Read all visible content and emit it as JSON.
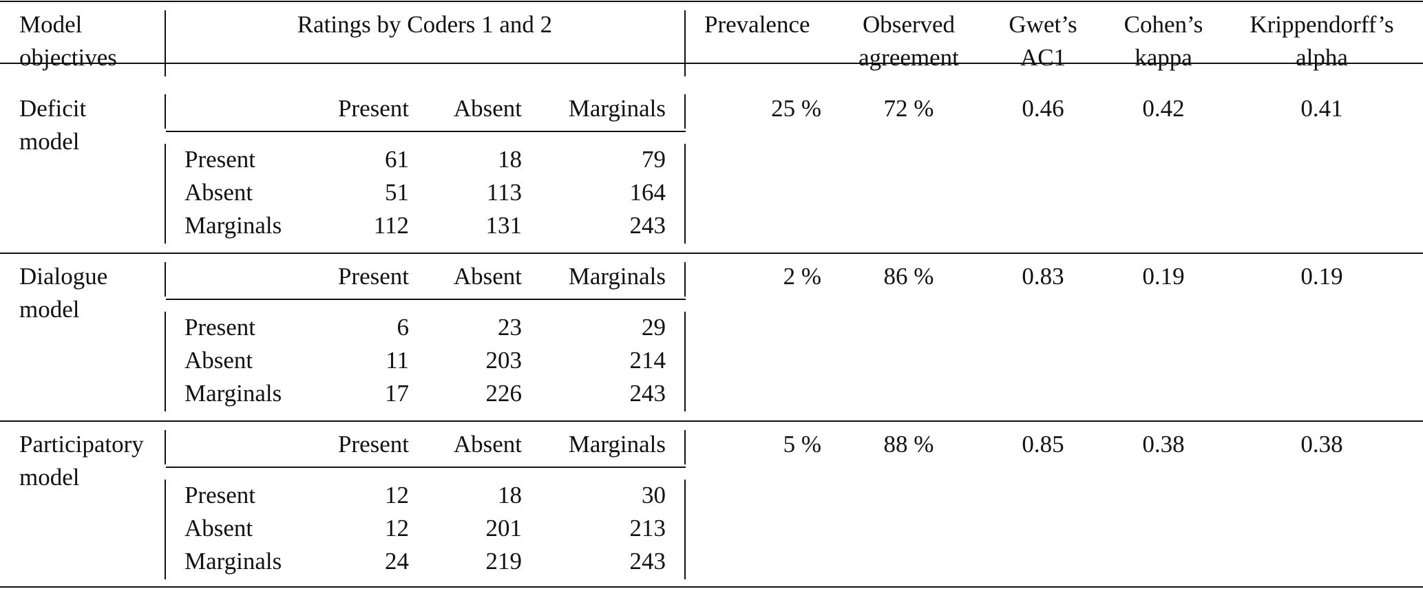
{
  "headers": {
    "model_objectives": [
      "Model",
      "objectives"
    ],
    "ratings": "Ratings by Coders 1 and 2",
    "prevalence": "Prevalence",
    "observed_agreement": [
      "Observed",
      "agreement"
    ],
    "gwet": [
      "Gwet’s",
      "AC1"
    ],
    "cohen": [
      "Cohen’s",
      "kappa"
    ],
    "krippendorff": [
      "Krippendorff’s",
      "alpha"
    ]
  },
  "col_labels": [
    "Present",
    "Absent",
    "Marginals"
  ],
  "row_labels": [
    "Present",
    "Absent",
    "Marginals"
  ],
  "groups": [
    {
      "model": [
        "Deficit",
        "model"
      ],
      "matrix": [
        [
          "61",
          "18",
          "79"
        ],
        [
          "51",
          "113",
          "164"
        ],
        [
          "112",
          "131",
          "243"
        ]
      ],
      "prevalence": "25 %",
      "observed": "72 %",
      "gwet": "0.46",
      "cohen": "0.42",
      "kripp": "0.41"
    },
    {
      "model": [
        "Dialogue",
        "model"
      ],
      "matrix": [
        [
          "6",
          "23",
          "29"
        ],
        [
          "11",
          "203",
          "214"
        ],
        [
          "17",
          "226",
          "243"
        ]
      ],
      "prevalence": "2 %",
      "observed": "86 %",
      "gwet": "0.83",
      "cohen": "0.19",
      "kripp": "0.19"
    },
    {
      "model": [
        "Participatory",
        "model"
      ],
      "matrix": [
        [
          "12",
          "18",
          "30"
        ],
        [
          "12",
          "201",
          "213"
        ],
        [
          "24",
          "219",
          "243"
        ]
      ],
      "prevalence": "5 %",
      "observed": "88 %",
      "gwet": "0.85",
      "cohen": "0.38",
      "kripp": "0.38"
    }
  ]
}
